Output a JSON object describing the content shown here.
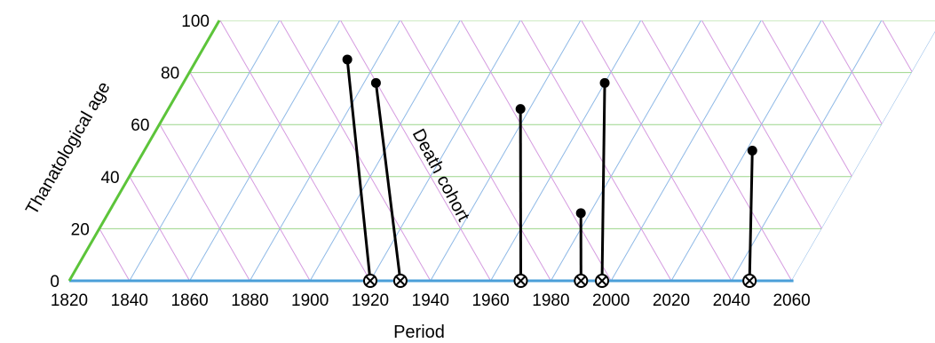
{
  "chart_data": {
    "type": "lexis-triangle",
    "xlabel": "Period",
    "ylabel": "Thanatological age",
    "annotation": "Death cohort",
    "x_ticks": [
      1820,
      1840,
      1860,
      1880,
      1900,
      1920,
      1940,
      1960,
      1980,
      2000,
      2020,
      2040,
      2060
    ],
    "y_ticks": [
      0,
      20,
      40,
      60,
      80,
      100
    ],
    "xlim": [
      1820,
      2060
    ],
    "ylim": [
      0,
      100
    ],
    "grid": true,
    "lifelines": [
      {
        "start_period": 1870,
        "age": 85,
        "death_period": 1920
      },
      {
        "start_period": 1884,
        "age": 76,
        "death_period": 1930
      },
      {
        "start_period": 1937,
        "age": 66,
        "death_period": 1970
      },
      {
        "start_period": 1960,
        "age": 76,
        "death_period": 1997
      },
      {
        "start_period": 1977,
        "age": 26,
        "death_period": 1990
      },
      {
        "start_period": 2022,
        "age": 50,
        "death_period": 2046
      }
    ],
    "colors": {
      "period_axis": "#4a9fd8",
      "age_axis": "#5cc43a",
      "horizontal_grid": "#9cd68a",
      "right_diagonal_grid": "#8fb9e6",
      "left_diagonal_grid": "#d59be0",
      "lifeline": "#000000"
    }
  }
}
